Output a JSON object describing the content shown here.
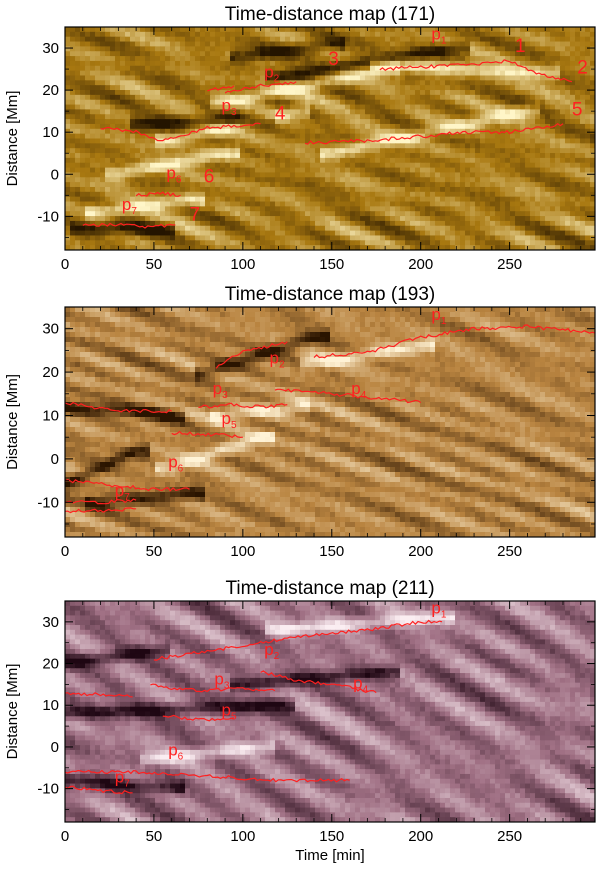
{
  "chart_data": [
    {
      "type": "heatmap",
      "title": "Time-distance map (171)",
      "xlabel": "",
      "ylabel": "Distance [Mm]",
      "xlim": [
        0,
        298
      ],
      "ylim": [
        -18,
        35
      ],
      "xticks": [
        0,
        50,
        100,
        150,
        200,
        250
      ],
      "yticks": [
        -10,
        0,
        10,
        20,
        30
      ],
      "palette": "gold",
      "colors": {
        "dark": "#241400",
        "mid": "#a87810",
        "light": "#fff6c8"
      },
      "curve_color": "#ff2020",
      "ridges": [
        {
          "t0": 10,
          "t1": 55,
          "d0": -13,
          "d1": -13,
          "dark": true
        },
        {
          "t0": 20,
          "t1": 70,
          "d0": -9,
          "d1": -6,
          "dark": false
        },
        {
          "t0": 45,
          "t1": 110,
          "d0": 12,
          "d1": 13,
          "dark": true
        },
        {
          "t0": 60,
          "t1": 130,
          "d0": 8,
          "d1": 15,
          "dark": false
        },
        {
          "t0": 90,
          "t1": 180,
          "d0": 17,
          "d1": 25,
          "dark": false
        },
        {
          "t0": 120,
          "t1": 220,
          "d0": 23,
          "d1": 30,
          "dark": true
        },
        {
          "t0": 150,
          "t1": 260,
          "d0": 5,
          "d1": 15,
          "dark": false
        },
        {
          "t0": 180,
          "t1": 270,
          "d0": 26,
          "d1": 24,
          "dark": false
        },
        {
          "t0": 100,
          "t1": 150,
          "d0": 28,
          "d1": 31,
          "dark": true
        },
        {
          "t0": 30,
          "t1": 90,
          "d0": 0,
          "d1": 5,
          "dark": false
        }
      ],
      "curves": [
        {
          "points": [
            [
              177,
              25
            ],
            [
              200,
              25.5
            ],
            [
              230,
              26
            ],
            [
              250,
              27
            ],
            [
              265,
              24
            ],
            [
              285,
              22
            ]
          ]
        },
        {
          "points": [
            [
              90,
              19.5
            ],
            [
              110,
              21
            ],
            [
              130,
              22
            ]
          ]
        },
        {
          "points": [
            [
              80,
              20
            ],
            [
              95,
              21
            ]
          ]
        },
        {
          "points": [
            [
              20,
              11
            ],
            [
              40,
              10
            ],
            [
              55,
              8
            ],
            [
              80,
              11
            ],
            [
              110,
              12
            ]
          ]
        },
        {
          "points": [
            [
              135,
              7.5
            ],
            [
              170,
              8
            ],
            [
              200,
              9
            ],
            [
              225,
              10
            ],
            [
              250,
              10
            ],
            [
              280,
              12
            ]
          ]
        },
        {
          "points": [
            [
              40,
              -5
            ],
            [
              55,
              -4.5
            ],
            [
              65,
              -5
            ]
          ]
        },
        {
          "points": [
            [
              10,
              -12
            ],
            [
              30,
              -12
            ],
            [
              45,
              -12.5
            ],
            [
              62,
              -12
            ]
          ]
        }
      ],
      "labels": [
        {
          "text": "p",
          "sub": "1",
          "t": 206,
          "d": 32
        },
        {
          "text": "p",
          "sub": "2",
          "t": 112,
          "d": 23
        },
        {
          "text": "p",
          "sub": "3",
          "t": 88,
          "d": 15
        },
        {
          "text": "p",
          "sub": "6",
          "t": 57,
          "d": -1
        },
        {
          "text": "p",
          "sub": "7",
          "t": 32,
          "d": -8.5
        },
        {
          "text": "1",
          "t": 253,
          "d": 29
        },
        {
          "text": "2",
          "t": 288,
          "d": 24
        },
        {
          "text": "3",
          "t": 148,
          "d": 26
        },
        {
          "text": "4",
          "t": 118,
          "d": 13
        },
        {
          "text": "5",
          "t": 285,
          "d": 14
        },
        {
          "text": "6",
          "t": 78,
          "d": -2
        },
        {
          "text": "7",
          "t": 70,
          "d": -11
        }
      ]
    },
    {
      "type": "heatmap",
      "title": "Time-distance map (193)",
      "xlabel": "",
      "ylabel": "Distance [Mm]",
      "xlim": [
        0,
        298
      ],
      "ylim": [
        -18,
        35
      ],
      "xticks": [
        0,
        50,
        100,
        150,
        200,
        250
      ],
      "yticks": [
        -10,
        0,
        10,
        20,
        30
      ],
      "palette": "brown",
      "colors": {
        "dark": "#2a1400",
        "mid": "#b98440",
        "light": "#fff3d6"
      },
      "curve_color": "#ff2020",
      "ridges": [
        {
          "t0": 0,
          "t1": 60,
          "d0": 12,
          "d1": 10,
          "dark": true
        },
        {
          "t0": 80,
          "t1": 140,
          "d0": 20,
          "d1": 28,
          "dark": true
        },
        {
          "t0": 90,
          "t1": 130,
          "d0": 10,
          "d1": 12,
          "dark": false
        },
        {
          "t0": 60,
          "t1": 110,
          "d0": -2,
          "d1": 5,
          "dark": false
        },
        {
          "t0": 0,
          "t1": 40,
          "d0": -6,
          "d1": 2,
          "dark": true
        },
        {
          "t0": 140,
          "t1": 200,
          "d0": 22,
          "d1": 26,
          "dark": false
        },
        {
          "t0": 20,
          "t1": 70,
          "d0": -10,
          "d1": -8,
          "dark": true
        }
      ],
      "curves": [
        {
          "points": [
            [
              140,
              23.5
            ],
            [
              170,
              24.5
            ],
            [
              200,
              28
            ],
            [
              230,
              30
            ],
            [
              260,
              30.5
            ],
            [
              298,
              29
            ]
          ]
        },
        {
          "points": [
            [
              85,
              21
            ],
            [
              100,
              25
            ],
            [
              115,
              26
            ],
            [
              125,
              27
            ]
          ]
        },
        {
          "points": [
            [
              118,
              16
            ],
            [
              150,
              15
            ],
            [
              175,
              14
            ],
            [
              200,
              13
            ]
          ]
        },
        {
          "points": [
            [
              75,
              12
            ],
            [
              95,
              12.5
            ],
            [
              110,
              12
            ],
            [
              125,
              12.5
            ]
          ]
        },
        {
          "points": [
            [
              0,
              13
            ],
            [
              30,
              11
            ],
            [
              50,
              11
            ],
            [
              60,
              11
            ]
          ]
        },
        {
          "points": [
            [
              60,
              6
            ],
            [
              85,
              5.5
            ],
            [
              100,
              5
            ]
          ]
        },
        {
          "points": [
            [
              0,
              -5
            ],
            [
              25,
              -6
            ],
            [
              50,
              -7
            ],
            [
              70,
              -7
            ]
          ]
        },
        {
          "points": [
            [
              0,
              -10
            ],
            [
              20,
              -10
            ],
            [
              40,
              -9.5
            ]
          ]
        },
        {
          "points": [
            [
              0,
              -12
            ],
            [
              20,
              -12
            ],
            [
              40,
              -11.5
            ]
          ]
        }
      ],
      "labels": [
        {
          "text": "p",
          "sub": "1",
          "t": 206,
          "d": 32
        },
        {
          "text": "p",
          "sub": "2",
          "t": 115,
          "d": 22
        },
        {
          "text": "p",
          "sub": "3",
          "t": 83,
          "d": 15
        },
        {
          "text": "p",
          "sub": "4",
          "t": 161,
          "d": 15
        },
        {
          "text": "p",
          "sub": "5",
          "t": 88,
          "d": 8
        },
        {
          "text": "p",
          "sub": "6",
          "t": 58,
          "d": -2
        },
        {
          "text": "p",
          "sub": "7",
          "t": 28,
          "d": -8.5
        }
      ]
    },
    {
      "type": "heatmap",
      "title": "Time-distance map (211)",
      "xlabel": "Time [min]",
      "ylabel": "Distance [Mm]",
      "xlim": [
        0,
        298
      ],
      "ylim": [
        -18,
        35
      ],
      "xticks": [
        0,
        50,
        100,
        150,
        200,
        250
      ],
      "yticks": [
        -10,
        0,
        10,
        20,
        30
      ],
      "palette": "purple",
      "colors": {
        "dark": "#1e0612",
        "mid": "#a07084",
        "light": "#fbeef2"
      },
      "curve_color": "#ff2020",
      "ridges": [
        {
          "t0": 0,
          "t1": 120,
          "d0": 8,
          "d1": 10,
          "dark": true
        },
        {
          "t0": 50,
          "t1": 110,
          "d0": -3,
          "d1": 0,
          "dark": false
        },
        {
          "t0": 0,
          "t1": 60,
          "d0": -8,
          "d1": -10,
          "dark": true
        },
        {
          "t0": 100,
          "t1": 180,
          "d0": 15,
          "d1": 18,
          "dark": true
        },
        {
          "t0": 0,
          "t1": 50,
          "d0": 20,
          "d1": 23,
          "dark": true
        },
        {
          "t0": 120,
          "t1": 210,
          "d0": 28,
          "d1": 31,
          "dark": false
        }
      ],
      "curves": [
        {
          "points": [
            [
              50,
              21
            ],
            [
              80,
              23
            ],
            [
              110,
              25
            ],
            [
              140,
              27
            ],
            [
              170,
              28
            ],
            [
              200,
              30
            ],
            [
              212,
              30
            ]
          ]
        },
        {
          "points": [
            [
              110,
              18
            ],
            [
              130,
              16
            ],
            [
              150,
              15
            ],
            [
              175,
              13
            ]
          ]
        },
        {
          "points": [
            [
              48,
              15
            ],
            [
              60,
              14
            ],
            [
              80,
              13.5
            ],
            [
              100,
              14
            ],
            [
              118,
              13.5
            ]
          ]
        },
        {
          "points": [
            [
              0,
              13
            ],
            [
              20,
              12.5
            ],
            [
              38,
              12
            ]
          ]
        },
        {
          "points": [
            [
              55,
              7.5
            ],
            [
              75,
              6.5
            ],
            [
              95,
              7
            ]
          ]
        },
        {
          "points": [
            [
              0,
              -6
            ],
            [
              40,
              -6
            ],
            [
              80,
              -7
            ],
            [
              120,
              -8
            ],
            [
              160,
              -8
            ]
          ]
        },
        {
          "points": [
            [
              0,
              -9.5
            ],
            [
              20,
              -10.5
            ],
            [
              38,
              -11
            ]
          ]
        }
      ],
      "labels": [
        {
          "text": "p",
          "sub": "1",
          "t": 206,
          "d": 32
        },
        {
          "text": "p",
          "sub": "2",
          "t": 112,
          "d": 22
        },
        {
          "text": "p",
          "sub": "3",
          "t": 84,
          "d": 15
        },
        {
          "text": "p",
          "sub": "4",
          "t": 162,
          "d": 14
        },
        {
          "text": "p",
          "sub": "5",
          "t": 88,
          "d": 7.5
        },
        {
          "text": "p",
          "sub": "6",
          "t": 58,
          "d": -2
        },
        {
          "text": "p",
          "sub": "7",
          "t": 28,
          "d": -8.5
        }
      ]
    }
  ]
}
